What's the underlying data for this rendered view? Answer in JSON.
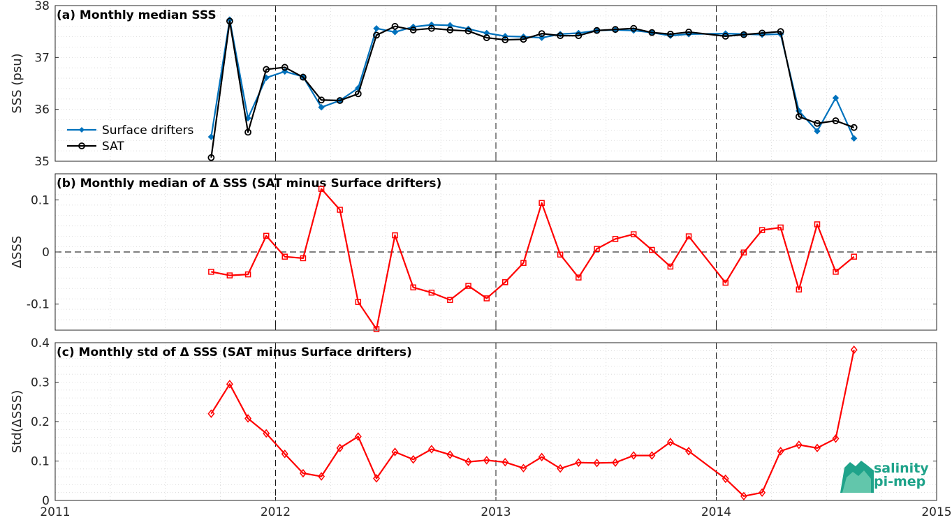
{
  "colors": {
    "drifters": "#0072BD",
    "sat": "#000000",
    "delta": "#FF0000",
    "logo": "#1FA38A"
  },
  "logo": {
    "line1": "salinity",
    "line2": "pi-mep"
  },
  "chart_data": [
    {
      "type": "line",
      "title": "(a) Monthly median SSS",
      "ylabel": "SSS (psu)",
      "xlim": [
        2011,
        2015
      ],
      "ylim": [
        35,
        38
      ],
      "yticks": [
        35,
        36,
        37,
        38
      ],
      "grid": true,
      "legend_position": "left",
      "x": [
        2011.708,
        2011.792,
        2011.875,
        2011.958,
        2012.042,
        2012.125,
        2012.208,
        2012.292,
        2012.375,
        2012.458,
        2012.542,
        2012.625,
        2012.708,
        2012.792,
        2012.875,
        2012.958,
        2013.042,
        2013.125,
        2013.208,
        2013.292,
        2013.375,
        2013.458,
        2013.542,
        2013.625,
        2013.708,
        2013.792,
        2013.875,
        2014.042,
        2014.125,
        2014.208,
        2014.292,
        2014.375,
        2014.458,
        2014.542,
        2014.625
      ],
      "series": [
        {
          "name": "Surface drifters",
          "color": "#0072BD",
          "marker": "dot",
          "values": [
            35.47,
            37.73,
            35.83,
            36.61,
            36.73,
            36.63,
            36.04,
            36.17,
            36.41,
            37.56,
            37.49,
            37.59,
            37.63,
            37.62,
            37.55,
            37.47,
            37.41,
            37.4,
            37.38,
            37.45,
            37.47,
            37.52,
            37.53,
            37.52,
            37.48,
            37.42,
            37.45,
            37.46,
            37.45,
            37.44,
            37.45,
            35.97,
            35.58,
            36.22,
            35.44
          ]
        },
        {
          "name": "SAT",
          "color": "#000000",
          "marker": "circle",
          "values": [
            35.07,
            37.7,
            35.56,
            36.77,
            36.81,
            36.62,
            36.18,
            36.17,
            36.3,
            37.43,
            37.6,
            37.53,
            37.56,
            37.53,
            37.51,
            37.38,
            37.34,
            37.35,
            37.46,
            37.42,
            37.42,
            37.52,
            37.54,
            37.56,
            37.48,
            37.45,
            37.49,
            37.41,
            37.44,
            37.47,
            37.5,
            35.86,
            35.73,
            35.78,
            35.65
          ]
        }
      ]
    },
    {
      "type": "line",
      "title": "(b) Monthly median of Δ SSS (SAT minus Surface drifters)",
      "ylabel": "ΔSSS",
      "xlim": [
        2011,
        2015
      ],
      "ylim": [
        -0.15,
        0.15
      ],
      "yticks": [
        -0.1,
        0,
        0.1
      ],
      "ytick_labels": [
        "-0.1",
        "0",
        "0.1"
      ],
      "zero_line": true,
      "grid": true,
      "x": [
        2011.708,
        2011.792,
        2011.875,
        2011.958,
        2012.042,
        2012.125,
        2012.208,
        2012.292,
        2012.375,
        2012.458,
        2012.542,
        2012.625,
        2012.708,
        2012.792,
        2012.875,
        2012.958,
        2013.042,
        2013.125,
        2013.208,
        2013.292,
        2013.375,
        2013.458,
        2013.542,
        2013.625,
        2013.708,
        2013.792,
        2013.875,
        2014.042,
        2014.125,
        2014.208,
        2014.292,
        2014.375,
        2014.458,
        2014.542,
        2014.625
      ],
      "series": [
        {
          "color": "#FF0000",
          "marker": "square",
          "values": [
            -0.038,
            -0.045,
            -0.043,
            0.031,
            -0.009,
            -0.012,
            0.121,
            0.081,
            -0.096,
            -0.148,
            0.032,
            -0.068,
            -0.078,
            -0.092,
            -0.065,
            -0.089,
            -0.058,
            -0.021,
            0.094,
            -0.005,
            -0.049,
            0.006,
            0.025,
            0.034,
            0.004,
            -0.028,
            0.03,
            -0.059,
            -0.001,
            0.042,
            0.047,
            -0.072,
            0.053,
            -0.038,
            -0.009
          ]
        }
      ]
    },
    {
      "type": "line",
      "title": "(c) Monthly std of Δ SSS (SAT minus Surface drifters)",
      "ylabel": "Std(ΔSSS)",
      "xlim": [
        2011,
        2015
      ],
      "ylim": [
        0,
        0.4
      ],
      "yticks": [
        0,
        0.1,
        0.2,
        0.3,
        0.4
      ],
      "ytick_labels": [
        "0",
        "0.1",
        "0.2",
        "0.3",
        "0.4"
      ],
      "xticks": [
        2011,
        2012,
        2013,
        2014,
        2015
      ],
      "xtick_labels": [
        "2011",
        "2012",
        "2013",
        "2014",
        "2015"
      ],
      "grid": true,
      "x": [
        2011.708,
        2011.792,
        2011.875,
        2011.958,
        2012.042,
        2012.125,
        2012.208,
        2012.292,
        2012.375,
        2012.458,
        2012.542,
        2012.625,
        2012.708,
        2012.792,
        2012.875,
        2012.958,
        2013.042,
        2013.125,
        2013.208,
        2013.292,
        2013.375,
        2013.458,
        2013.542,
        2013.625,
        2013.708,
        2013.792,
        2013.875,
        2014.042,
        2014.125,
        2014.208,
        2014.292,
        2014.375,
        2014.458,
        2014.542,
        2014.625
      ],
      "series": [
        {
          "color": "#FF0000",
          "marker": "diamond",
          "values": [
            0.22,
            0.295,
            0.208,
            0.17,
            0.118,
            0.069,
            0.061,
            0.133,
            0.162,
            0.056,
            0.123,
            0.104,
            0.13,
            0.116,
            0.098,
            0.102,
            0.097,
            0.082,
            0.11,
            0.081,
            0.096,
            0.095,
            0.096,
            0.114,
            0.114,
            0.148,
            0.125,
            0.055,
            0.011,
            0.02,
            0.125,
            0.141,
            0.133,
            0.157,
            0.382
          ]
        }
      ]
    }
  ]
}
